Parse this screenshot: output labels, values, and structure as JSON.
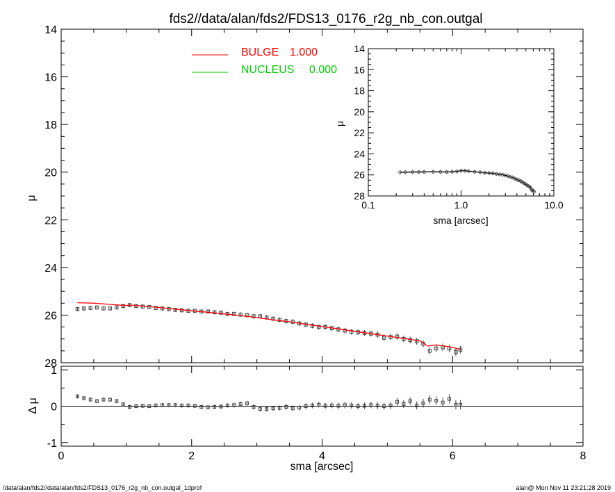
{
  "title": "fds2//data/alan/fds2/FDS13_0176_r2g_nb_con.outgal",
  "footer": {
    "left": "/data/alan/fds2//data/alan/fds2/FDS13_0176_r2g_nb_con.outgal_1dprof",
    "right": "alan@  Mon Nov 11 23:21:28 2019"
  },
  "colors": {
    "bulge": "#ff0000",
    "nucleus": "#00cc00",
    "data": "#444444",
    "axes": "#000000"
  },
  "chart_data": [
    {
      "type": "scatter",
      "panel": "main",
      "title": "fds2//data/alan/fds2/FDS13_0176_r2g_nb_con.outgal",
      "xlabel": "",
      "ylabel": "μ",
      "xlim": [
        0,
        8
      ],
      "ylim": [
        28,
        14
      ],
      "y_inverted": true,
      "xticks": [
        0,
        2,
        4,
        6,
        8
      ],
      "yticks": [
        14,
        16,
        18,
        20,
        22,
        24,
        26,
        28
      ],
      "ytick_labels": [
        "14",
        "16",
        "18",
        "20",
        "22",
        "24",
        "26",
        "28"
      ],
      "legend": {
        "placement": "top-center",
        "entries": [
          {
            "name": "BULGE",
            "value": "1.000",
            "color": "#ff0000"
          },
          {
            "name": "NUCLEUS",
            "value": "0.000",
            "color": "#00cc00"
          }
        ]
      },
      "series": [
        {
          "name": "data",
          "style": "square-markers",
          "x": [
            0.25,
            0.35,
            0.45,
            0.55,
            0.65,
            0.75,
            0.85,
            0.95,
            1.05,
            1.15,
            1.25,
            1.35,
            1.45,
            1.55,
            1.65,
            1.75,
            1.85,
            1.95,
            2.05,
            2.15,
            2.25,
            2.35,
            2.45,
            2.55,
            2.65,
            2.75,
            2.85,
            2.95,
            3.05,
            3.15,
            3.25,
            3.35,
            3.45,
            3.55,
            3.65,
            3.75,
            3.85,
            3.95,
            4.05,
            4.15,
            4.25,
            4.35,
            4.45,
            4.55,
            4.65,
            4.75,
            4.85,
            4.95,
            5.05,
            5.15,
            5.25,
            5.35,
            5.45,
            5.55,
            5.65,
            5.75,
            5.85,
            5.95,
            6.05,
            6.12
          ],
          "y": [
            25.75,
            25.72,
            25.7,
            25.68,
            25.72,
            25.72,
            25.68,
            25.62,
            25.58,
            25.62,
            25.64,
            25.66,
            25.7,
            25.72,
            25.75,
            25.78,
            25.8,
            25.82,
            25.82,
            25.85,
            25.85,
            25.88,
            25.9,
            25.95,
            25.95,
            25.98,
            26.0,
            26.05,
            26.05,
            26.1,
            26.15,
            26.2,
            26.25,
            26.28,
            26.35,
            26.4,
            26.45,
            26.5,
            26.5,
            26.55,
            26.6,
            26.65,
            26.7,
            26.72,
            26.75,
            26.78,
            26.82,
            26.95,
            26.92,
            26.9,
            27.0,
            27.05,
            27.1,
            27.2,
            27.5,
            27.4,
            27.35,
            27.4,
            27.55,
            27.45
          ],
          "err": [
            0.03,
            0.03,
            0.03,
            0.03,
            0.03,
            0.03,
            0.03,
            0.03,
            0.03,
            0.03,
            0.03,
            0.03,
            0.03,
            0.03,
            0.03,
            0.03,
            0.03,
            0.03,
            0.03,
            0.03,
            0.03,
            0.03,
            0.03,
            0.03,
            0.04,
            0.04,
            0.04,
            0.04,
            0.04,
            0.04,
            0.04,
            0.04,
            0.05,
            0.05,
            0.05,
            0.05,
            0.05,
            0.05,
            0.05,
            0.05,
            0.06,
            0.06,
            0.06,
            0.06,
            0.06,
            0.06,
            0.07,
            0.07,
            0.07,
            0.08,
            0.08,
            0.08,
            0.08,
            0.09,
            0.09,
            0.09,
            0.1,
            0.1,
            0.1,
            0.1
          ]
        },
        {
          "name": "BULGE",
          "style": "line",
          "color": "#ff0000",
          "x": [
            0.25,
            0.5,
            0.75,
            1.0,
            1.05,
            1.25,
            1.5,
            1.75,
            2.0,
            2.25,
            2.5,
            2.75,
            3.0,
            3.25,
            3.5,
            3.75,
            4.0,
            4.25,
            4.5,
            4.75,
            5.0,
            5.25,
            5.5,
            5.62,
            5.75,
            6.0,
            6.12
          ],
          "y": [
            25.48,
            25.5,
            25.55,
            25.6,
            25.58,
            25.62,
            25.68,
            25.75,
            25.82,
            25.88,
            25.95,
            26.02,
            26.1,
            26.2,
            26.28,
            26.38,
            26.48,
            26.58,
            26.68,
            26.78,
            26.88,
            26.98,
            27.08,
            27.3,
            27.25,
            27.35,
            27.45
          ]
        }
      ]
    },
    {
      "type": "scatter",
      "panel": "residual",
      "xlabel": "sma [arcsec]",
      "ylabel": "Δ μ",
      "xlim": [
        0,
        8
      ],
      "ylim": [
        -1.1,
        1.1
      ],
      "xticks": [
        0,
        2,
        4,
        6,
        8
      ],
      "yticks": [
        -1,
        0,
        1
      ],
      "ytick_labels": [
        "-1",
        "0",
        "1"
      ],
      "series": [
        {
          "name": "residual",
          "style": "square-markers",
          "x": [
            0.25,
            0.35,
            0.45,
            0.55,
            0.65,
            0.75,
            0.85,
            0.95,
            1.05,
            1.15,
            1.25,
            1.35,
            1.45,
            1.55,
            1.65,
            1.75,
            1.85,
            1.95,
            2.05,
            2.15,
            2.25,
            2.35,
            2.45,
            2.55,
            2.65,
            2.75,
            2.85,
            2.95,
            3.05,
            3.15,
            3.25,
            3.35,
            3.45,
            3.55,
            3.65,
            3.75,
            3.85,
            3.95,
            4.05,
            4.15,
            4.25,
            4.35,
            4.45,
            4.55,
            4.65,
            4.75,
            4.85,
            4.95,
            5.05,
            5.15,
            5.25,
            5.35,
            5.45,
            5.55,
            5.65,
            5.75,
            5.85,
            5.95,
            6.05,
            6.12
          ],
          "y": [
            0.27,
            0.22,
            0.18,
            0.14,
            0.18,
            0.18,
            0.14,
            0.05,
            -0.02,
            0.0,
            0.01,
            0.0,
            0.02,
            0.03,
            0.03,
            0.03,
            0.02,
            0.02,
            0.01,
            -0.02,
            -0.03,
            -0.02,
            -0.01,
            0.02,
            0.03,
            0.06,
            0.08,
            -0.02,
            -0.08,
            -0.08,
            -0.06,
            -0.05,
            -0.02,
            -0.06,
            -0.04,
            0.0,
            0.02,
            0.04,
            0.01,
            0.02,
            0.01,
            0.03,
            0.02,
            0.0,
            0.01,
            0.03,
            0.02,
            0.0,
            0.02,
            0.12,
            0.06,
            0.14,
            0.02,
            0.08,
            0.18,
            0.15,
            0.1,
            0.2,
            0.04,
            0.04
          ],
          "err": [
            0.03,
            0.03,
            0.03,
            0.03,
            0.03,
            0.03,
            0.03,
            0.03,
            0.03,
            0.03,
            0.03,
            0.03,
            0.03,
            0.03,
            0.03,
            0.03,
            0.03,
            0.03,
            0.03,
            0.03,
            0.03,
            0.03,
            0.03,
            0.03,
            0.04,
            0.04,
            0.04,
            0.04,
            0.04,
            0.04,
            0.04,
            0.04,
            0.05,
            0.05,
            0.05,
            0.05,
            0.05,
            0.05,
            0.05,
            0.05,
            0.06,
            0.06,
            0.06,
            0.06,
            0.06,
            0.06,
            0.07,
            0.07,
            0.07,
            0.08,
            0.08,
            0.08,
            0.08,
            0.09,
            0.09,
            0.09,
            0.1,
            0.1,
            0.1,
            0.1
          ]
        }
      ]
    },
    {
      "type": "scatter",
      "panel": "inset",
      "xlabel": "sma [arcsec]",
      "ylabel": "μ",
      "x_scale": "log",
      "xlim": [
        0.1,
        10.0
      ],
      "ylim": [
        28,
        14
      ],
      "y_inverted": true,
      "xticks": [
        0.1,
        1.0,
        10.0
      ],
      "xtick_labels": [
        "0.1",
        "1.0",
        "10.0"
      ],
      "yticks": [
        14,
        16,
        18,
        20,
        22,
        24,
        26,
        28
      ],
      "ytick_labels": [
        "14",
        "16",
        "18",
        "20",
        "22",
        "24",
        "26",
        "28"
      ],
      "series": [
        {
          "name": "data",
          "style": "diamond-markers",
          "x": [
            0.22,
            0.25,
            0.3,
            0.35,
            0.4,
            0.5,
            0.6,
            0.7,
            0.8,
            0.9,
            1.0,
            1.1,
            1.2,
            1.4,
            1.6,
            1.8,
            2.0,
            2.2,
            2.4,
            2.6,
            2.8,
            3.0,
            3.2,
            3.4,
            3.6,
            3.8,
            4.0,
            4.2,
            4.4,
            4.6,
            4.8,
            5.0,
            5.2,
            5.4,
            5.6,
            5.8,
            6.0,
            6.12
          ],
          "y": [
            25.75,
            25.74,
            25.72,
            25.72,
            25.71,
            25.7,
            25.71,
            25.72,
            25.7,
            25.66,
            25.6,
            25.6,
            25.64,
            25.7,
            25.75,
            25.8,
            25.82,
            25.85,
            25.9,
            25.95,
            25.98,
            26.05,
            26.1,
            26.2,
            26.25,
            26.35,
            26.45,
            26.5,
            26.6,
            26.7,
            26.8,
            26.9,
            27.0,
            27.1,
            27.2,
            27.45,
            27.5,
            27.6
          ]
        }
      ]
    }
  ]
}
